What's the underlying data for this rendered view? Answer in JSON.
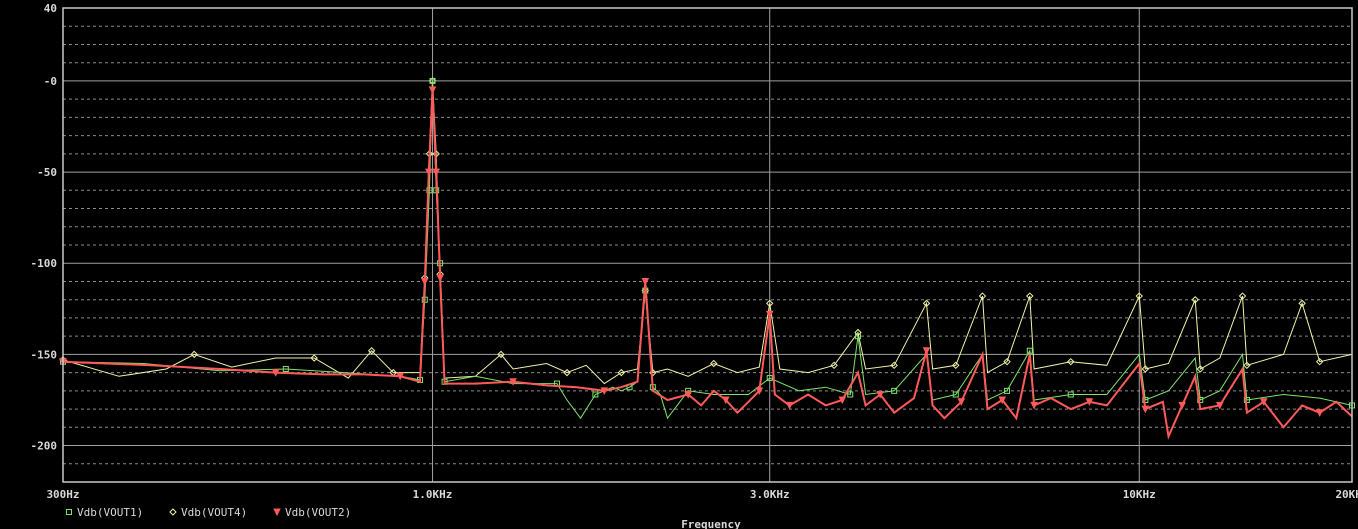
{
  "chart_data": {
    "type": "line",
    "xlabel": "Frequency",
    "ylabel": "",
    "xscale": "log",
    "xlim": [
      300,
      20000
    ],
    "ylim": [
      -220,
      40
    ],
    "grid": true,
    "legend_placement": "bottom-left",
    "x_tick_labels": [
      {
        "value": 300,
        "label": "300Hz"
      },
      {
        "value": 1000,
        "label": "1.0KHz"
      },
      {
        "value": 3000,
        "label": "3.0KHz"
      },
      {
        "value": 10000,
        "label": "10KHz"
      },
      {
        "value": 20000,
        "label": "20KHz"
      }
    ],
    "y_tick_labels": [
      {
        "value": 40,
        "label": "40"
      },
      {
        "value": 0,
        "label": "-0"
      },
      {
        "value": -50,
        "label": "-50"
      },
      {
        "value": -100,
        "label": "-100"
      },
      {
        "value": -150,
        "label": "-150"
      },
      {
        "value": -200,
        "label": "-200"
      }
    ],
    "series": [
      {
        "name": "Vdb(VOUT1)",
        "color": "#7ee36a",
        "marker": "square",
        "points": [
          [
            300,
            -154
          ],
          [
            390,
            -155
          ],
          [
            500,
            -159
          ],
          [
            620,
            -158
          ],
          [
            750,
            -160
          ],
          [
            900,
            -162
          ],
          [
            960,
            -164
          ],
          [
            975,
            -120
          ],
          [
            990,
            -60
          ],
          [
            1000,
            0
          ],
          [
            1012,
            -60
          ],
          [
            1025,
            -100
          ],
          [
            1040,
            -165
          ],
          [
            1150,
            -162
          ],
          [
            1300,
            -166
          ],
          [
            1500,
            -166
          ],
          [
            1550,
            -175
          ],
          [
            1620,
            -185
          ],
          [
            1700,
            -172
          ],
          [
            1800,
            -168
          ],
          [
            1850,
            -170
          ],
          [
            1900,
            -168
          ],
          [
            1950,
            -165
          ],
          [
            2000,
            -115
          ],
          [
            2050,
            -168
          ],
          [
            2100,
            -172
          ],
          [
            2150,
            -185
          ],
          [
            2300,
            -170
          ],
          [
            2500,
            -172
          ],
          [
            2800,
            -172
          ],
          [
            3000,
            -163
          ],
          [
            3300,
            -170
          ],
          [
            3600,
            -168
          ],
          [
            3900,
            -172
          ],
          [
            4000,
            -140
          ],
          [
            4100,
            -172
          ],
          [
            4500,
            -170
          ],
          [
            5000,
            -150
          ],
          [
            5100,
            -175
          ],
          [
            5500,
            -172
          ],
          [
            6000,
            -150
          ],
          [
            6100,
            -175
          ],
          [
            6500,
            -170
          ],
          [
            7000,
            -148
          ],
          [
            7100,
            -175
          ],
          [
            8000,
            -172
          ],
          [
            9000,
            -172
          ],
          [
            10000,
            -150
          ],
          [
            10200,
            -175
          ],
          [
            11000,
            -170
          ],
          [
            12000,
            -152
          ],
          [
            12200,
            -175
          ],
          [
            13000,
            -170
          ],
          [
            14000,
            -150
          ],
          [
            14200,
            -175
          ],
          [
            16000,
            -172
          ],
          [
            18000,
            -174
          ],
          [
            20000,
            -178
          ]
        ]
      },
      {
        "name": "Vdb(VOUT4)",
        "color": "#f4f4a8",
        "marker": "diamond",
        "points": [
          [
            300,
            -153
          ],
          [
            360,
            -162
          ],
          [
            420,
            -158
          ],
          [
            460,
            -150
          ],
          [
            520,
            -157
          ],
          [
            600,
            -152
          ],
          [
            680,
            -152
          ],
          [
            760,
            -163
          ],
          [
            820,
            -148
          ],
          [
            880,
            -160
          ],
          [
            960,
            -160
          ],
          [
            975,
            -108
          ],
          [
            990,
            -40
          ],
          [
            1000,
            0
          ],
          [
            1012,
            -40
          ],
          [
            1025,
            -106
          ],
          [
            1040,
            -163
          ],
          [
            1150,
            -162
          ],
          [
            1250,
            -150
          ],
          [
            1300,
            -158
          ],
          [
            1450,
            -155
          ],
          [
            1550,
            -160
          ],
          [
            1650,
            -156
          ],
          [
            1750,
            -166
          ],
          [
            1850,
            -160
          ],
          [
            1950,
            -158
          ],
          [
            2000,
            -115
          ],
          [
            2050,
            -160
          ],
          [
            2150,
            -158
          ],
          [
            2300,
            -162
          ],
          [
            2500,
            -155
          ],
          [
            2700,
            -160
          ],
          [
            2900,
            -157
          ],
          [
            3000,
            -122
          ],
          [
            3100,
            -158
          ],
          [
            3400,
            -160
          ],
          [
            3700,
            -156
          ],
          [
            4000,
            -138
          ],
          [
            4100,
            -158
          ],
          [
            4500,
            -156
          ],
          [
            5000,
            -122
          ],
          [
            5100,
            -158
          ],
          [
            5500,
            -156
          ],
          [
            6000,
            -118
          ],
          [
            6100,
            -160
          ],
          [
            6500,
            -154
          ],
          [
            7000,
            -118
          ],
          [
            7100,
            -158
          ],
          [
            8000,
            -154
          ],
          [
            9000,
            -156
          ],
          [
            10000,
            -118
          ],
          [
            10200,
            -158
          ],
          [
            11000,
            -155
          ],
          [
            12000,
            -120
          ],
          [
            12200,
            -158
          ],
          [
            13000,
            -152
          ],
          [
            14000,
            -118
          ],
          [
            14200,
            -156
          ],
          [
            16000,
            -150
          ],
          [
            17000,
            -122
          ],
          [
            18000,
            -154
          ],
          [
            20000,
            -150
          ]
        ]
      },
      {
        "name": "Vdb(VOUT2)",
        "color": "#ff5a5a",
        "marker": "triangle-down",
        "points": [
          [
            300,
            -154
          ],
          [
            400,
            -156
          ],
          [
            500,
            -158
          ],
          [
            600,
            -160
          ],
          [
            700,
            -161
          ],
          [
            800,
            -161
          ],
          [
            900,
            -162
          ],
          [
            960,
            -165
          ],
          [
            975,
            -110
          ],
          [
            988,
            -50
          ],
          [
            1000,
            -5
          ],
          [
            1012,
            -50
          ],
          [
            1025,
            -108
          ],
          [
            1040,
            -166
          ],
          [
            1150,
            -166
          ],
          [
            1300,
            -165
          ],
          [
            1450,
            -167
          ],
          [
            1600,
            -168
          ],
          [
            1750,
            -170
          ],
          [
            1850,
            -168
          ],
          [
            1950,
            -165
          ],
          [
            2000,
            -110
          ],
          [
            2050,
            -170
          ],
          [
            2150,
            -175
          ],
          [
            2300,
            -172
          ],
          [
            2400,
            -178
          ],
          [
            2500,
            -170
          ],
          [
            2600,
            -175
          ],
          [
            2700,
            -182
          ],
          [
            2800,
            -176
          ],
          [
            2900,
            -170
          ],
          [
            3000,
            -128
          ],
          [
            3050,
            -172
          ],
          [
            3200,
            -178
          ],
          [
            3400,
            -172
          ],
          [
            3600,
            -178
          ],
          [
            3800,
            -175
          ],
          [
            4000,
            -160
          ],
          [
            4100,
            -178
          ],
          [
            4300,
            -172
          ],
          [
            4500,
            -182
          ],
          [
            4800,
            -174
          ],
          [
            5000,
            -148
          ],
          [
            5100,
            -178
          ],
          [
            5300,
            -185
          ],
          [
            5600,
            -176
          ],
          [
            6000,
            -150
          ],
          [
            6100,
            -180
          ],
          [
            6400,
            -175
          ],
          [
            6700,
            -185
          ],
          [
            7000,
            -150
          ],
          [
            7100,
            -178
          ],
          [
            7500,
            -174
          ],
          [
            8000,
            -180
          ],
          [
            8500,
            -176
          ],
          [
            9000,
            -178
          ],
          [
            10000,
            -155
          ],
          [
            10200,
            -180
          ],
          [
            10800,
            -176
          ],
          [
            11000,
            -195
          ],
          [
            11500,
            -178
          ],
          [
            12000,
            -162
          ],
          [
            12200,
            -180
          ],
          [
            13000,
            -178
          ],
          [
            14000,
            -158
          ],
          [
            14200,
            -182
          ],
          [
            15000,
            -176
          ],
          [
            16000,
            -190
          ],
          [
            17000,
            -178
          ],
          [
            18000,
            -182
          ],
          [
            19000,
            -176
          ],
          [
            20000,
            -184
          ]
        ]
      }
    ]
  }
}
